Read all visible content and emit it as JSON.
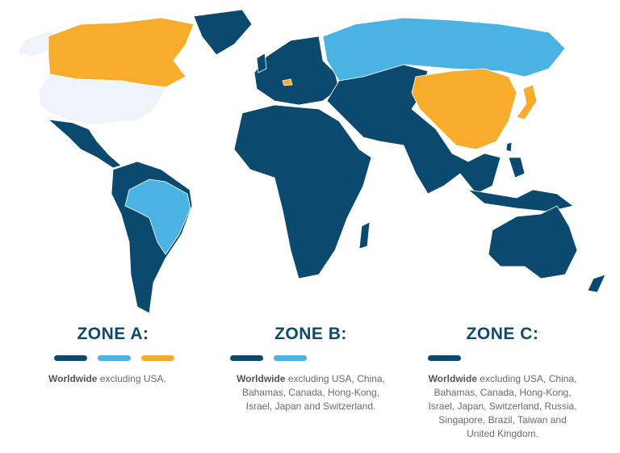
{
  "colors": {
    "zone_c": "#0b4a6e",
    "zone_b": "#4ab3e3",
    "zone_a": "#f7ad2b",
    "excluded": "#eef4fa"
  },
  "zones": [
    {
      "title": "ZONE A:",
      "bars": [
        "zone_c",
        "zone_b",
        "zone_a"
      ],
      "bold": "Worldwide",
      "text": " excluding USA."
    },
    {
      "title": "ZONE B:",
      "bars": [
        "zone_c",
        "zone_b"
      ],
      "bold": "Worldwide",
      "text": " excluding USA, China, Bahamas, Canada, Hong-Kong, Israel, Japan and Switzerland."
    },
    {
      "title": "ZONE C:",
      "bars": [
        "zone_c"
      ],
      "bold": "Worldwide",
      "text": " excluding USA, China, Bahamas, Canada, Hong-Kong, Israel, Japan, Switzerland, Russia, Singapore, Brazil, Taiwan and United Kingdom."
    }
  ]
}
